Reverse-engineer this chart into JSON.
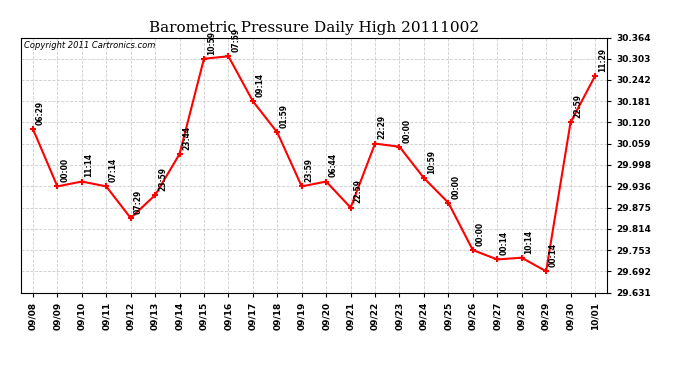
{
  "title": "Barometric Pressure Daily High 20111002",
  "copyright": "Copyright 2011 Cartronics.com",
  "background_color": "#ffffff",
  "line_color": "#ff0000",
  "marker_color": "#ff0000",
  "grid_color": "#cccccc",
  "points": [
    {
      "x": 0,
      "date": "09/08",
      "value": 30.101,
      "label": "06:29"
    },
    {
      "x": 1,
      "date": "09/09",
      "value": 29.936,
      "label": "00:00"
    },
    {
      "x": 2,
      "date": "09/10",
      "value": 29.95,
      "label": "11:14"
    },
    {
      "x": 3,
      "date": "09/11",
      "value": 29.936,
      "label": "07:14"
    },
    {
      "x": 4,
      "date": "09/12",
      "value": 29.845,
      "label": "07:29"
    },
    {
      "x": 5,
      "date": "09/13",
      "value": 29.911,
      "label": "23:59"
    },
    {
      "x": 6,
      "date": "09/14",
      "value": 30.029,
      "label": "23:44"
    },
    {
      "x": 7,
      "date": "09/15",
      "value": 30.303,
      "label": "10:59"
    },
    {
      "x": 8,
      "date": "09/16",
      "value": 30.31,
      "label": "07:59"
    },
    {
      "x": 9,
      "date": "09/17",
      "value": 30.181,
      "label": "09:14"
    },
    {
      "x": 10,
      "date": "09/18",
      "value": 30.091,
      "label": "01:59"
    },
    {
      "x": 11,
      "date": "09/19",
      "value": 29.936,
      "label": "23:59"
    },
    {
      "x": 12,
      "date": "09/20",
      "value": 29.95,
      "label": "06:44"
    },
    {
      "x": 13,
      "date": "09/21",
      "value": 29.875,
      "label": "22:59"
    },
    {
      "x": 14,
      "date": "09/22",
      "value": 30.059,
      "label": "22:29"
    },
    {
      "x": 15,
      "date": "09/23",
      "value": 30.05,
      "label": "00:00"
    },
    {
      "x": 16,
      "date": "09/24",
      "value": 29.96,
      "label": "10:59"
    },
    {
      "x": 17,
      "date": "09/25",
      "value": 29.889,
      "label": "00:00"
    },
    {
      "x": 18,
      "date": "09/26",
      "value": 29.753,
      "label": "00:00"
    },
    {
      "x": 19,
      "date": "09/27",
      "value": 29.726,
      "label": "00:14"
    },
    {
      "x": 20,
      "date": "09/28",
      "value": 29.731,
      "label": "10:14"
    },
    {
      "x": 21,
      "date": "09/29",
      "value": 29.692,
      "label": "00:14"
    },
    {
      "x": 22,
      "date": "09/30",
      "value": 30.12,
      "label": "22:59"
    },
    {
      "x": 23,
      "date": "10/01",
      "value": 30.253,
      "label": "11:29"
    }
  ],
  "ylim": [
    29.631,
    30.364
  ],
  "yticks": [
    29.631,
    29.692,
    29.753,
    29.814,
    29.875,
    29.936,
    29.998,
    30.059,
    30.12,
    30.181,
    30.242,
    30.303,
    30.364
  ],
  "title_fontsize": 11,
  "copyright_fontsize": 6,
  "label_fontsize": 5.5,
  "tick_fontsize": 6.5,
  "linewidth": 1.5,
  "markersize": 5
}
